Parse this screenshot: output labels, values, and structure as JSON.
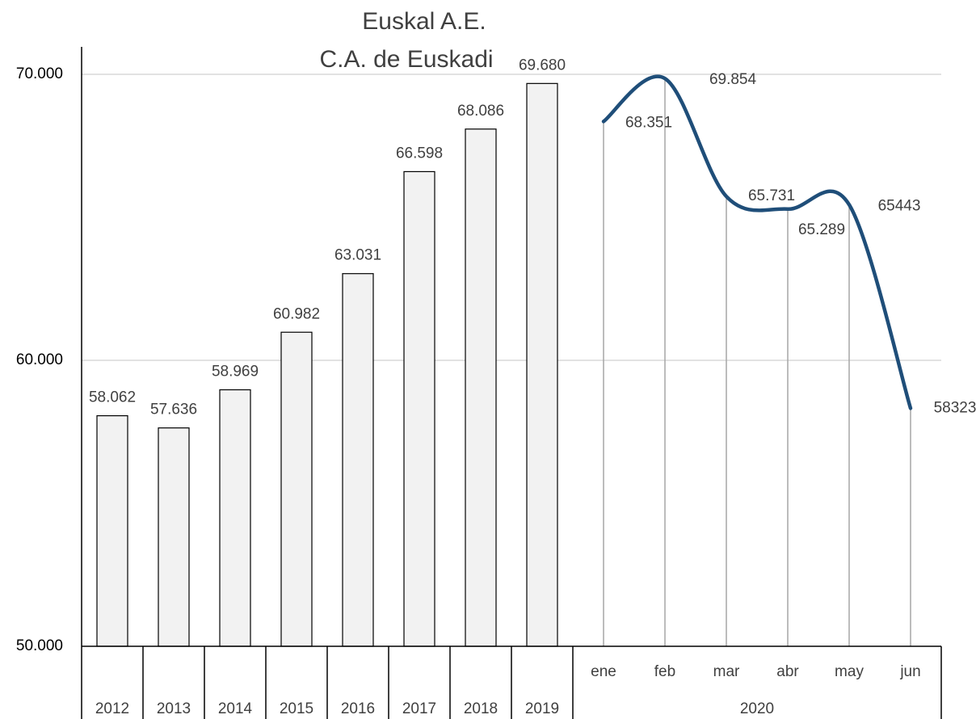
{
  "chart_data": [
    {
      "type": "bar",
      "title": "Euskal A.E.",
      "subtitle": "C.A. de Euskadi",
      "categories": [
        "2012",
        "2013",
        "2014",
        "2015",
        "2016",
        "2017",
        "2018",
        "2019"
      ],
      "values": [
        58062,
        57636,
        58969,
        60982,
        63031,
        66598,
        68086,
        69680
      ],
      "value_labels": [
        "58.062",
        "57.636",
        "58.969",
        "60.982",
        "63.031",
        "66.598",
        "68.086",
        "69.680"
      ],
      "color": "#f2f2f2",
      "ylim": [
        50000,
        70000
      ],
      "yticks": [
        {
          "value": 50000,
          "label": "50.000"
        },
        {
          "value": 60000,
          "label": "60.000"
        },
        {
          "value": 70000,
          "label": "70.000"
        }
      ],
      "grid": true
    },
    {
      "type": "line",
      "group": "2020",
      "categories": [
        "ene",
        "feb",
        "mar",
        "abr",
        "may",
        "jun"
      ],
      "values": [
        68351,
        69854,
        65731,
        65289,
        65443,
        58323
      ],
      "value_labels": [
        "68.351",
        "69.854",
        "65.731",
        "65.289",
        "65443",
        "58323"
      ],
      "color": "#1f4e79"
    }
  ]
}
